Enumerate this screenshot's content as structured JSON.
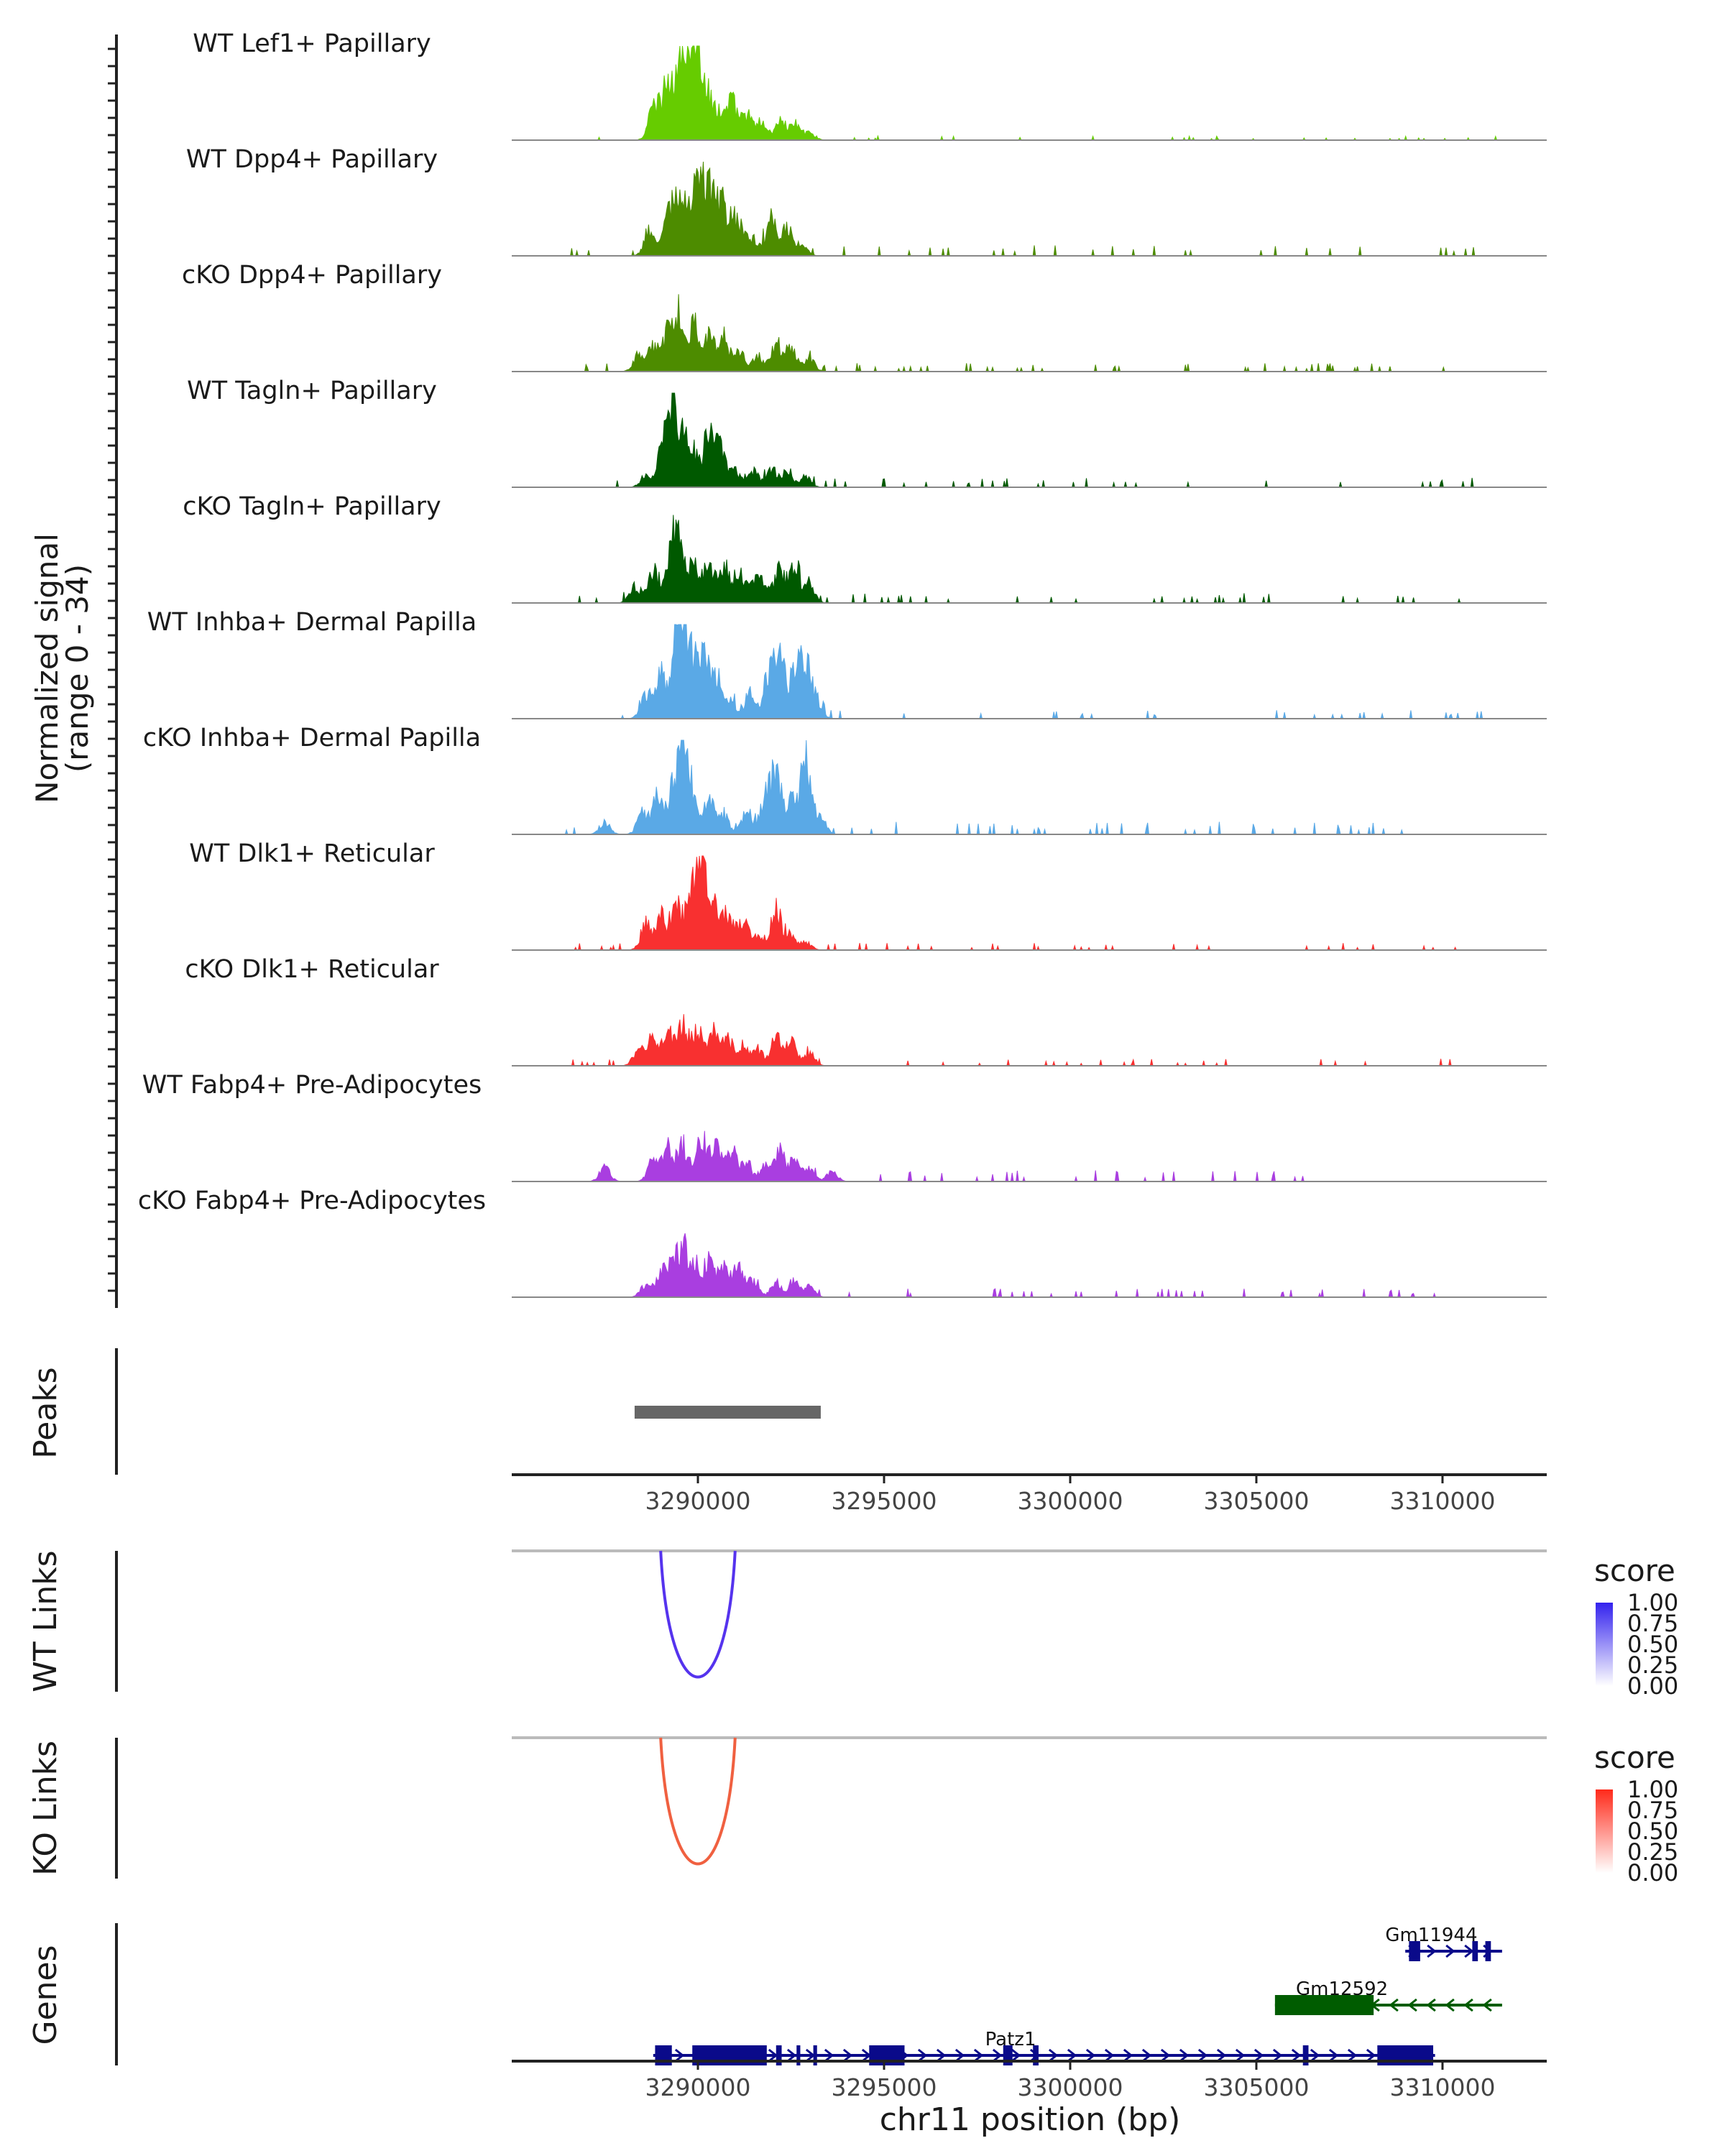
{
  "chart_data": {
    "type": "area",
    "title": "",
    "xlabel": "chr11 position (bp)",
    "x_ticks": [
      3290000,
      3295000,
      3300000,
      3305000,
      3310000
    ],
    "x_tick_labels": [
      "3290000",
      "3295000",
      "3300000",
      "3305000",
      "3310000"
    ],
    "xlim": [
      3285000,
      3312800
    ],
    "signal_axis_label": [
      "Normalized signal",
      "(range 0 - 34)"
    ],
    "signal_range": [
      0,
      34
    ],
    "tracks": [
      {
        "name": "WT Lef1+ Papillary",
        "color": "#66cc00",
        "peaks": [
          [
            3288800,
            0.4
          ],
          [
            3289150,
            0.62
          ],
          [
            3289500,
            0.78
          ],
          [
            3289650,
            0.62
          ],
          [
            3289900,
            0.95
          ],
          [
            3290150,
            0.7
          ],
          [
            3290500,
            0.4
          ],
          [
            3290900,
            0.48
          ],
          [
            3291300,
            0.32
          ],
          [
            3291700,
            0.22
          ],
          [
            3292200,
            0.25
          ],
          [
            3292600,
            0.2
          ],
          [
            3293000,
            0.1
          ]
        ],
        "noise": 0.03,
        "noise_extent": [
          3287000,
          3311500
        ]
      },
      {
        "name": "WT Dpp4+ Papillary",
        "color": "#4d8c00",
        "peaks": [
          [
            3288700,
            0.3
          ],
          [
            3289200,
            0.52
          ],
          [
            3289500,
            0.6
          ],
          [
            3289800,
            0.55
          ],
          [
            3290100,
            0.98
          ],
          [
            3290400,
            0.62
          ],
          [
            3290700,
            0.5
          ],
          [
            3291000,
            0.42
          ],
          [
            3291300,
            0.25
          ],
          [
            3291600,
            0.15
          ],
          [
            3292000,
            0.4
          ],
          [
            3292400,
            0.32
          ],
          [
            3292800,
            0.15
          ]
        ],
        "noise": 0.08,
        "noise_extent": [
          3286500,
          3311000
        ]
      },
      {
        "name": "cKO Dpp4+ Papillary",
        "color": "#4d8c00",
        "peaks": [
          [
            3288400,
            0.2
          ],
          [
            3288800,
            0.3
          ],
          [
            3289200,
            0.45
          ],
          [
            3289500,
            0.7
          ],
          [
            3289900,
            0.55
          ],
          [
            3290300,
            0.42
          ],
          [
            3290700,
            0.35
          ],
          [
            3291100,
            0.25
          ],
          [
            3291600,
            0.2
          ],
          [
            3292100,
            0.35
          ],
          [
            3292500,
            0.32
          ],
          [
            3293000,
            0.15
          ]
        ],
        "noise": 0.06,
        "noise_extent": [
          3286300,
          3311800
        ]
      },
      {
        "name": "WT Tagln+ Papillary",
        "color": "#005900",
        "peaks": [
          [
            3288600,
            0.15
          ],
          [
            3289000,
            0.35
          ],
          [
            3289300,
            1.0
          ],
          [
            3289600,
            0.55
          ],
          [
            3289900,
            0.4
          ],
          [
            3290300,
            0.6
          ],
          [
            3290600,
            0.45
          ],
          [
            3291000,
            0.2
          ],
          [
            3291500,
            0.2
          ],
          [
            3292000,
            0.22
          ],
          [
            3292400,
            0.18
          ],
          [
            3292900,
            0.12
          ]
        ],
        "noise": 0.07,
        "noise_extent": [
          3287800,
          3311300
        ]
      },
      {
        "name": "cKO Tagln+ Papillary",
        "color": "#005900",
        "peaks": [
          [
            3288300,
            0.2
          ],
          [
            3288800,
            0.4
          ],
          [
            3289300,
            0.6
          ],
          [
            3289500,
            0.75
          ],
          [
            3289900,
            0.5
          ],
          [
            3290300,
            0.45
          ],
          [
            3290700,
            0.48
          ],
          [
            3291100,
            0.35
          ],
          [
            3291500,
            0.3
          ],
          [
            3291800,
            0.25
          ],
          [
            3292200,
            0.4
          ],
          [
            3292600,
            0.42
          ],
          [
            3293000,
            0.2
          ]
        ],
        "noise": 0.07,
        "noise_extent": [
          3286400,
          3311000
        ]
      },
      {
        "name": "WT Inhba+ Dermal Papilla",
        "color": "#5aa9e6",
        "peaks": [
          [
            3288600,
            0.3
          ],
          [
            3289000,
            0.55
          ],
          [
            3289400,
            0.7
          ],
          [
            3289600,
            0.95
          ],
          [
            3289900,
            0.65
          ],
          [
            3290200,
            0.6
          ],
          [
            3290500,
            0.5
          ],
          [
            3290900,
            0.2
          ],
          [
            3291400,
            0.3
          ],
          [
            3291900,
            0.55
          ],
          [
            3292200,
            0.7
          ],
          [
            3292600,
            0.55
          ],
          [
            3292900,
            0.65
          ],
          [
            3293200,
            0.2
          ]
        ],
        "noise": 0.06,
        "noise_extent": [
          3286200,
          3311200
        ]
      },
      {
        "name": "cKO Inhba+ Dermal Papilla",
        "color": "#5aa9e6",
        "peaks": [
          [
            3287500,
            0.15
          ],
          [
            3288500,
            0.25
          ],
          [
            3288900,
            0.45
          ],
          [
            3289300,
            0.5
          ],
          [
            3289600,
            0.97
          ],
          [
            3289900,
            0.45
          ],
          [
            3290300,
            0.4
          ],
          [
            3290700,
            0.25
          ],
          [
            3291300,
            0.25
          ],
          [
            3291800,
            0.45
          ],
          [
            3292100,
            0.7
          ],
          [
            3292500,
            0.4
          ],
          [
            3292900,
            0.98
          ],
          [
            3293300,
            0.2
          ]
        ],
        "noise": 0.09,
        "noise_extent": [
          3286000,
          3309000
        ]
      },
      {
        "name": "WT Dlk1+ Reticular",
        "color": "#f83030",
        "peaks": [
          [
            3288600,
            0.3
          ],
          [
            3289000,
            0.4
          ],
          [
            3289400,
            0.55
          ],
          [
            3289800,
            0.6
          ],
          [
            3290100,
            0.98
          ],
          [
            3290400,
            0.55
          ],
          [
            3290800,
            0.45
          ],
          [
            3291200,
            0.35
          ],
          [
            3291600,
            0.2
          ],
          [
            3292100,
            0.5
          ],
          [
            3292500,
            0.2
          ],
          [
            3292900,
            0.1
          ]
        ],
        "noise": 0.05,
        "noise_extent": [
          3286500,
          3310500
        ]
      },
      {
        "name": "cKO Dlk1+ Reticular",
        "color": "#f83030",
        "peaks": [
          [
            3288400,
            0.2
          ],
          [
            3288800,
            0.35
          ],
          [
            3289200,
            0.4
          ],
          [
            3289600,
            0.5
          ],
          [
            3290000,
            0.45
          ],
          [
            3290400,
            0.4
          ],
          [
            3290800,
            0.32
          ],
          [
            3291200,
            0.25
          ],
          [
            3291600,
            0.2
          ],
          [
            3292100,
            0.35
          ],
          [
            3292500,
            0.3
          ],
          [
            3293000,
            0.15
          ]
        ],
        "noise": 0.05,
        "noise_extent": [
          3286300,
          3311700
        ]
      },
      {
        "name": "WT Fabp4+ Pre-Adipocytes",
        "color": "#a93ee0",
        "peaks": [
          [
            3287500,
            0.18
          ],
          [
            3288800,
            0.3
          ],
          [
            3289200,
            0.4
          ],
          [
            3289600,
            0.45
          ],
          [
            3290100,
            0.55
          ],
          [
            3290500,
            0.45
          ],
          [
            3290900,
            0.4
          ],
          [
            3291300,
            0.22
          ],
          [
            3291800,
            0.18
          ],
          [
            3292200,
            0.38
          ],
          [
            3292600,
            0.25
          ],
          [
            3293000,
            0.15
          ],
          [
            3293600,
            0.12
          ]
        ],
        "noise": 0.08,
        "noise_extent": [
          3287200,
          3306500
        ]
      },
      {
        "name": "cKO Fabp4+ Pre-Adipocytes",
        "color": "#a93ee0",
        "peaks": [
          [
            3288600,
            0.15
          ],
          [
            3289000,
            0.25
          ],
          [
            3289300,
            0.4
          ],
          [
            3289600,
            0.55
          ],
          [
            3289900,
            0.4
          ],
          [
            3290300,
            0.45
          ],
          [
            3290700,
            0.35
          ],
          [
            3291100,
            0.4
          ],
          [
            3291500,
            0.2
          ],
          [
            3292100,
            0.18
          ],
          [
            3292600,
            0.2
          ],
          [
            3293000,
            0.12
          ]
        ],
        "noise": 0.06,
        "noise_extent": [
          3288200,
          3310500
        ]
      }
    ],
    "peaks_track": {
      "label": "Peaks",
      "regions": [
        [
          3288300,
          3293300
        ]
      ],
      "color": "#666666"
    },
    "links_tracks": [
      {
        "label": "WT Links",
        "color": "#5533ee",
        "arc": [
          3289000,
          3291000
        ],
        "score": 1.0
      },
      {
        "label": "KO Links",
        "color": "#f06040",
        "arc": [
          3289000,
          3291000
        ],
        "score": 1.0
      }
    ],
    "score_legends": [
      {
        "title": "score",
        "ticks": [
          "1.00",
          "0.75",
          "0.50",
          "0.25",
          "0.00"
        ],
        "high_color": "#3322ee",
        "low_color": "#ffffff"
      },
      {
        "title": "score",
        "ticks": [
          "1.00",
          "0.75",
          "0.50",
          "0.25",
          "0.00"
        ],
        "high_color": "#ff2a1a",
        "low_color": "#ffffff"
      }
    ],
    "genes_track": {
      "label": "Genes",
      "genes": [
        {
          "name": "Patz1",
          "start": 3288800,
          "end": 3309800,
          "strand": "+",
          "color": "#0a0a8a",
          "exons": [
            [
              3288850,
              3289300
            ],
            [
              3289850,
              3291850
            ],
            [
              3292100,
              3292250
            ],
            [
              3292650,
              3292750
            ],
            [
              3293100,
              3293200
            ],
            [
              3294600,
              3295550
            ],
            [
              3298200,
              3298450
            ],
            [
              3299000,
              3299150
            ],
            [
              3306250,
              3306400
            ],
            [
              3308250,
              3309750
            ]
          ]
        },
        {
          "name": "Gm12592",
          "start": 3305500,
          "end": 3311600,
          "strand": "-",
          "color": "#005c00",
          "exons": [
            [
              3305500,
              3308150
            ]
          ]
        },
        {
          "name": "Gm11944",
          "start": 3309000,
          "end": 3311600,
          "strand": "+",
          "color": "#0a0a8a",
          "exons": [
            [
              3309100,
              3309400
            ],
            [
              3310800,
              3310950
            ],
            [
              3311150,
              3311300
            ]
          ]
        }
      ]
    }
  }
}
